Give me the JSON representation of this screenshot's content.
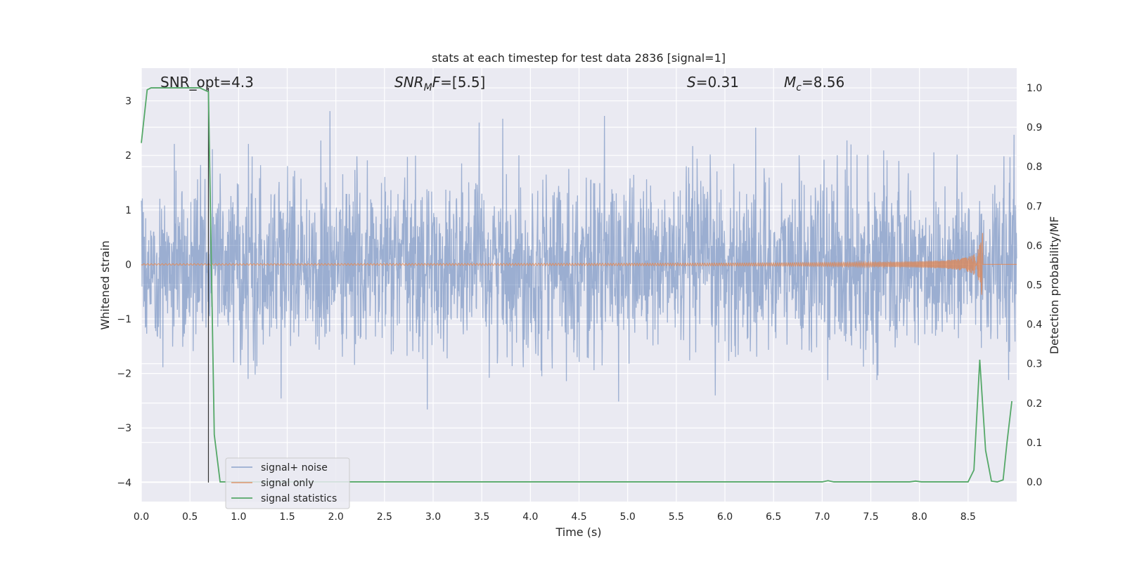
{
  "chart_data": {
    "type": "line",
    "title": "stats at each timestep for test data 2836 [signal=1]",
    "xlabel": "Time (s)",
    "ylabel_left": "Whitened strain",
    "ylabel_right": "Detection probability/MF",
    "xlim": [
      0.0,
      9.0
    ],
    "ylim_left": [
      -4.35,
      3.6
    ],
    "ylim_right": [
      -0.05,
      1.05
    ],
    "x_ticks": [
      "0.0",
      "0.5",
      "1.0",
      "1.5",
      "2.0",
      "2.5",
      "3.0",
      "3.5",
      "4.0",
      "4.5",
      "5.0",
      "5.5",
      "6.0",
      "6.5",
      "7.0",
      "7.5",
      "8.0",
      "8.5"
    ],
    "x_tick_values": [
      0.0,
      0.5,
      1.0,
      1.5,
      2.0,
      2.5,
      3.0,
      3.5,
      4.0,
      4.5,
      5.0,
      5.5,
      6.0,
      6.5,
      7.0,
      7.5,
      8.0,
      8.5
    ],
    "y_left_ticks": [
      "−4",
      "−3",
      "−2",
      "−1",
      "0",
      "1",
      "2",
      "3"
    ],
    "y_left_tick_values": [
      -4,
      -3,
      -2,
      -1,
      0,
      1,
      2,
      3
    ],
    "y_right_ticks": [
      "0.0",
      "0.1",
      "0.2",
      "0.3",
      "0.4",
      "0.5",
      "0.6",
      "0.7",
      "0.8",
      "0.9",
      "1.0"
    ],
    "y_right_tick_values": [
      0.0,
      0.1,
      0.2,
      0.3,
      0.4,
      0.5,
      0.6,
      0.7,
      0.8,
      0.9,
      1.0
    ],
    "grid": true,
    "legend_position": "lower-left",
    "annotations": {
      "snr_opt": "SNR_opt=4.3",
      "snr_mf_main": "SNR",
      "snr_mf_sub": "M",
      "snr_mf_rest": "F=[5.5]",
      "s_main": "S",
      "s_rest": "=0.31",
      "mc_main": "M",
      "mc_sub": "c",
      "mc_rest": "=8.56"
    },
    "vertical_marker_x": 0.69,
    "series": [
      {
        "name": "signal+ noise",
        "color": "#4c72b0",
        "axis": "left",
        "kind": "noise",
        "amplitude_std": 0.8,
        "visible_range": [
          -3.1,
          3.2
        ]
      },
      {
        "name": "signal only",
        "color": "#dd8452",
        "axis": "left",
        "kind": "chirp",
        "peak_time": 8.65,
        "peak_amplitude": 0.6,
        "end_amplitude": -0.4
      },
      {
        "name": "signal statistics",
        "color": "#55a868",
        "axis": "right",
        "x": [
          0.0,
          0.06,
          0.1,
          0.2,
          0.4,
          0.6,
          0.69,
          0.75,
          0.81,
          0.9,
          1.0,
          2.0,
          3.0,
          4.0,
          5.0,
          6.0,
          6.9,
          7.0,
          7.06,
          7.12,
          7.5,
          7.9,
          7.96,
          8.02,
          8.5,
          8.56,
          8.62,
          8.68,
          8.74,
          8.8,
          8.86,
          8.9,
          8.95
        ],
        "y": [
          0.86,
          0.995,
          1.0,
          1.0,
          1.0,
          1.0,
          0.99,
          0.12,
          0.0,
          0.0,
          0.0,
          0.0,
          0.0,
          0.0,
          0.0,
          0.0,
          0.0,
          0.0,
          0.003,
          0.0,
          0.0,
          0.0,
          0.002,
          0.0,
          0.0,
          0.03,
          0.31,
          0.08,
          0.002,
          0.0,
          0.005,
          0.1,
          0.205
        ]
      }
    ]
  }
}
